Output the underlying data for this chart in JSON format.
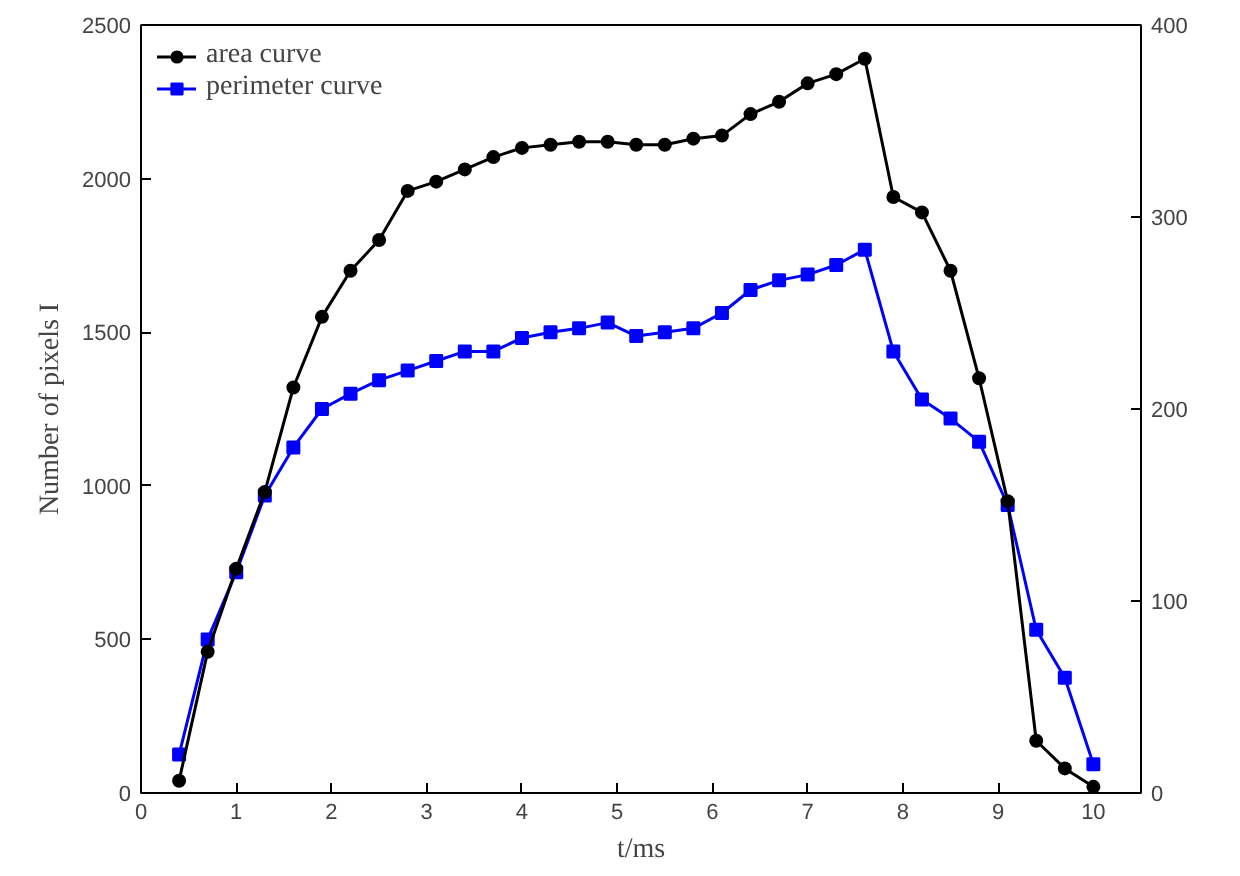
{
  "chart_data": {
    "type": "line",
    "xlabel": "t/ms",
    "ylabel": "Number of pixels I",
    "x": [
      0.4,
      0.7,
      1.0,
      1.3,
      1.6,
      1.9,
      2.2,
      2.5,
      2.8,
      3.1,
      3.4,
      3.7,
      4.0,
      4.3,
      4.6,
      4.9,
      5.2,
      5.5,
      5.8,
      6.1,
      6.4,
      6.7,
      7.0,
      7.3,
      7.6,
      7.9,
      8.2,
      8.5,
      8.8,
      9.1,
      9.4,
      9.7,
      10.0
    ],
    "series": [
      {
        "name": "area curve",
        "color": "#000000",
        "marker": "circle",
        "values": [
          40,
          460,
          730,
          980,
          1320,
          1550,
          1700,
          1800,
          1960,
          1990,
          2030,
          2070,
          2100,
          2110,
          2120,
          2120,
          2110,
          2110,
          2130,
          2140,
          2210,
          2250,
          2310,
          2340,
          2390,
          1940,
          1890,
          1700,
          1350,
          950,
          170,
          80,
          20
        ]
      },
      {
        "name": "perimeter curve",
        "color": "#0000ff",
        "marker": "square",
        "axis": "y2",
        "values": [
          20,
          80,
          115,
          155,
          180,
          200,
          208,
          215,
          220,
          225,
          230,
          230,
          237,
          240,
          242,
          245,
          238,
          240,
          242,
          250,
          262,
          267,
          270,
          275,
          283,
          230,
          205,
          195,
          183,
          150,
          85,
          60,
          15
        ]
      }
    ],
    "xlim": [
      0,
      10.5
    ],
    "xticks": [
      0,
      1,
      2,
      3,
      4,
      5,
      6,
      7,
      8,
      9,
      10
    ],
    "ylim": [
      0,
      2500
    ],
    "yticks": [
      0,
      500,
      1000,
      1500,
      2000,
      2500
    ],
    "y2lim": [
      0,
      400
    ],
    "y2ticks": [
      0,
      100,
      200,
      300,
      400
    ],
    "grid": false,
    "legend": "top left",
    "line_style": "solid"
  }
}
